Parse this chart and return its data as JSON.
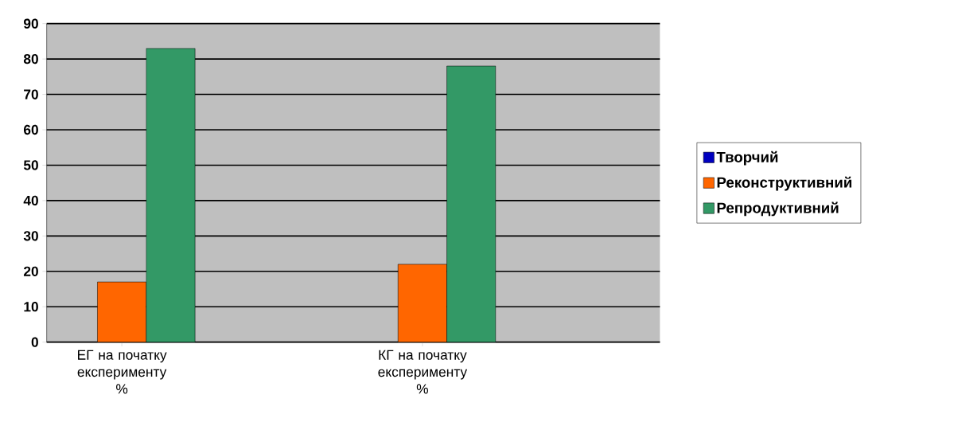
{
  "chart_data": {
    "type": "bar",
    "categories": [
      "ЕГ на початку експерименту %",
      "КГ на початку експерименту %"
    ],
    "series": [
      {
        "name": "Творчий",
        "color": "#0000c0",
        "values": [
          0,
          0
        ]
      },
      {
        "name": "Реконструктивний",
        "color": "#ff6600",
        "values": [
          17,
          22
        ]
      },
      {
        "name": "Репродуктивний",
        "color": "#339966",
        "values": [
          83,
          78
        ]
      }
    ],
    "ylim": [
      0,
      90
    ],
    "yticks": [
      0,
      10,
      20,
      30,
      40,
      50,
      60,
      70,
      80,
      90
    ],
    "grid": "y",
    "legend": "right"
  }
}
